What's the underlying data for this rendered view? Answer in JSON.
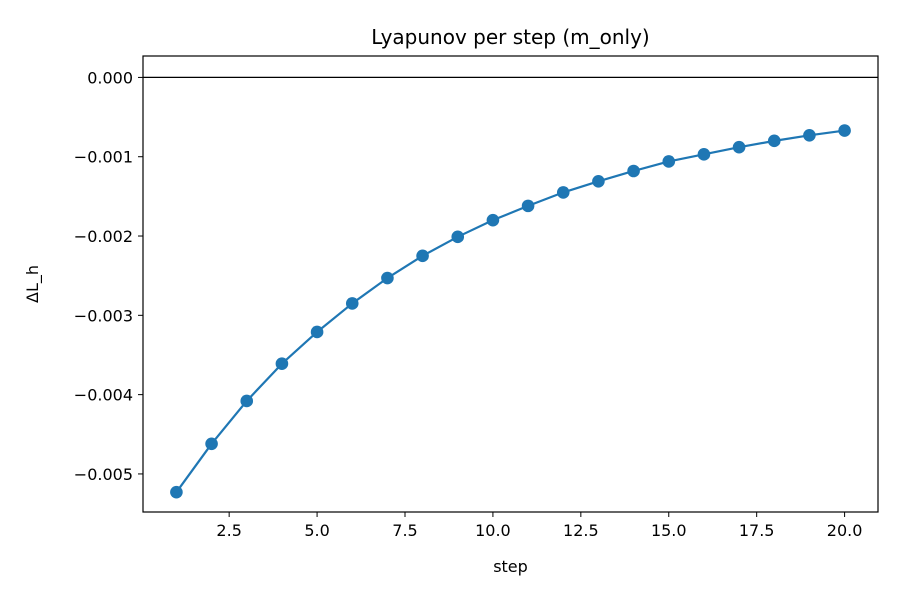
{
  "chart_data": {
    "type": "line",
    "title": "Lyapunov per step (m_only)",
    "xlabel": "step",
    "ylabel": "ΔL_h",
    "xlim": [
      0.05,
      20.95
    ],
    "ylim": [
      -0.00548,
      0.00027
    ],
    "x_ticks": [
      2.5,
      5.0,
      7.5,
      10.0,
      12.5,
      15.0,
      17.5,
      20.0
    ],
    "x_tick_labels": [
      "2.5",
      "5.0",
      "7.5",
      "10.0",
      "12.5",
      "15.0",
      "17.5",
      "20.0"
    ],
    "y_ticks": [
      0.0,
      -0.001,
      -0.002,
      -0.003,
      -0.004,
      -0.005
    ],
    "y_tick_labels": [
      "0.000",
      "−0.001",
      "−0.002",
      "−0.003",
      "−0.004",
      "−0.005"
    ],
    "reference_line_y": 0.0,
    "grid": false,
    "series": [
      {
        "color": "#1f77b4",
        "marker": "circle",
        "x": [
          1,
          2,
          3,
          4,
          5,
          6,
          7,
          8,
          9,
          10,
          11,
          12,
          13,
          14,
          15,
          16,
          17,
          18,
          19,
          20
        ],
        "y": [
          -0.00523,
          -0.00462,
          -0.00408,
          -0.00361,
          -0.00321,
          -0.00285,
          -0.00253,
          -0.00225,
          -0.00201,
          -0.0018,
          -0.00162,
          -0.00145,
          -0.00131,
          -0.00118,
          -0.00106,
          -0.00097,
          -0.00088,
          -0.0008,
          -0.00073,
          -0.00067
        ]
      }
    ]
  }
}
